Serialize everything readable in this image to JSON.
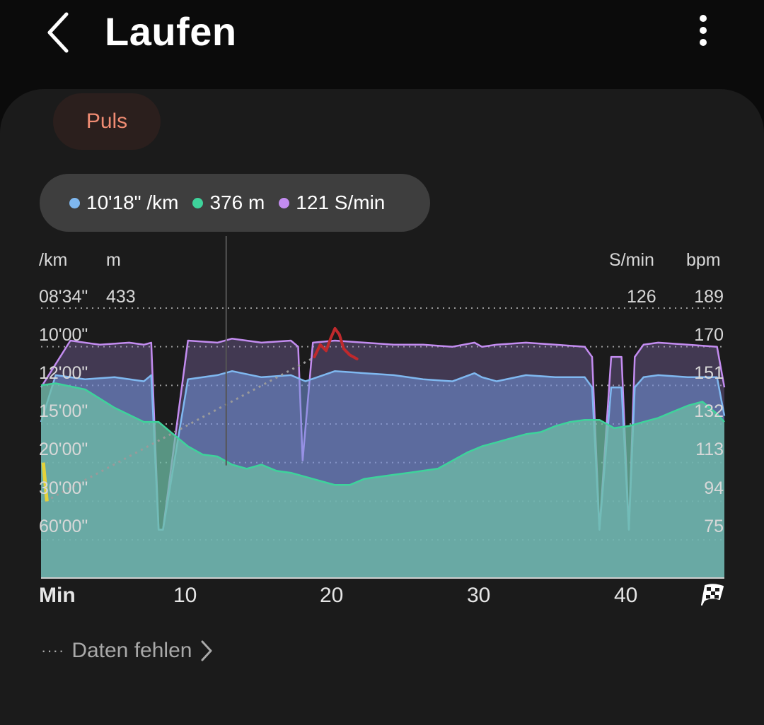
{
  "header": {
    "title": "Laufen"
  },
  "icons": {
    "back": "chevron-left-icon",
    "more": "more-vertical-icon",
    "finish": "checkered-flag-icon"
  },
  "filter_chip": {
    "label": "Puls"
  },
  "tooltip": {
    "pace": "10'18\" /km",
    "elevation": "376 m",
    "cadence": "121 S/min",
    "colors": {
      "pace": "#7fb8f0",
      "elevation": "#3ed39b",
      "cadence": "#c38cf0"
    }
  },
  "axes": {
    "pace_unit": "/km",
    "elevation_unit": "m",
    "cadence_unit": "S/min",
    "hr_unit": "bpm",
    "elevation_max": "433",
    "cadence_max": "126",
    "pace_ticks": [
      "08'34\"",
      "10'00\"",
      "12'00\"",
      "15'00\"",
      "20'00\"",
      "30'00\"",
      "60'00\""
    ],
    "hr_ticks": [
      "189",
      "170",
      "151",
      "132",
      "113",
      "94",
      "75"
    ],
    "x_unit": "Min",
    "x_ticks": [
      "10",
      "20",
      "30",
      "40"
    ]
  },
  "chart_data": {
    "type": "area",
    "xlabel": "Min",
    "x_ticks": [
      10,
      20,
      30,
      40
    ],
    "xlim": [
      0,
      46.5
    ],
    "hr_axis": [
      75,
      189
    ],
    "series": [
      {
        "name": "/km",
        "color": "#7fb8f0",
        "x": [
          0,
          1,
          3,
          5,
          7,
          7.5,
          8,
          8.3,
          10,
          12,
          13,
          15,
          17,
          18,
          20,
          22,
          24,
          26,
          28,
          29.5,
          30,
          31,
          33,
          35,
          37,
          37.5,
          38,
          38.8,
          39.5,
          40,
          40.4,
          41,
          42,
          44,
          46,
          46.5
        ],
        "y": [
          133,
          156,
          154,
          155,
          153,
          156,
          80,
          80,
          154,
          156,
          158,
          155,
          156,
          153,
          158,
          157,
          156,
          154,
          153,
          157,
          155,
          153,
          156,
          155,
          155,
          150,
          80,
          150,
          150,
          80,
          150,
          155,
          156,
          155,
          155,
          136
        ]
      },
      {
        "name": "m",
        "color": "#3ed39b",
        "x": [
          0,
          1,
          3,
          5,
          7,
          8,
          9,
          10,
          11,
          12,
          13,
          14,
          15,
          16,
          17,
          18,
          19,
          20,
          21,
          22,
          23,
          24,
          25,
          27,
          28,
          29,
          30,
          31,
          32,
          33,
          34,
          35,
          36,
          37,
          38,
          39,
          40,
          41,
          42,
          43,
          44,
          45,
          46,
          46.5
        ],
        "y": [
          151,
          152,
          149,
          140,
          133,
          133,
          127,
          121,
          117,
          116,
          112,
          110,
          112,
          109,
          108,
          106,
          104,
          102,
          102,
          105,
          106,
          107,
          108,
          110,
          114,
          118,
          121,
          123,
          125,
          127,
          128,
          131,
          133,
          134,
          134,
          130,
          131,
          133,
          135,
          138,
          141,
          143,
          137,
          133
        ]
      },
      {
        "name": "S/min",
        "color": "#c38cf0",
        "x": [
          0,
          2,
          4,
          6,
          7,
          7.5,
          8,
          8.3,
          10,
          12,
          13,
          15,
          17,
          17.5,
          17.8,
          18.5,
          20,
          22,
          24,
          26,
          28,
          29.5,
          30,
          31,
          33,
          35,
          37,
          37.5,
          38,
          38.8,
          39.5,
          40,
          40.4,
          41,
          42,
          44,
          46,
          46.5
        ],
        "y": [
          150,
          173,
          171,
          172,
          171,
          172,
          80,
          80,
          173,
          172,
          174,
          172,
          173,
          170,
          114,
          172,
          173,
          172,
          171,
          171,
          170,
          172,
          170,
          171,
          172,
          171,
          170,
          165,
          80,
          165,
          165,
          80,
          165,
          171,
          172,
          171,
          170,
          150
        ]
      },
      {
        "name": "bpm",
        "color": "#c0292c",
        "x": [
          18.6,
          19.0,
          19.4,
          19.7,
          20.0,
          20.3,
          20.6,
          21.0,
          21.5
        ],
        "y": [
          165,
          171,
          168,
          174,
          179,
          176,
          169,
          166,
          164
        ]
      }
    ],
    "selected_x": 12.6
  },
  "footer": {
    "label": "Daten fehlen"
  }
}
